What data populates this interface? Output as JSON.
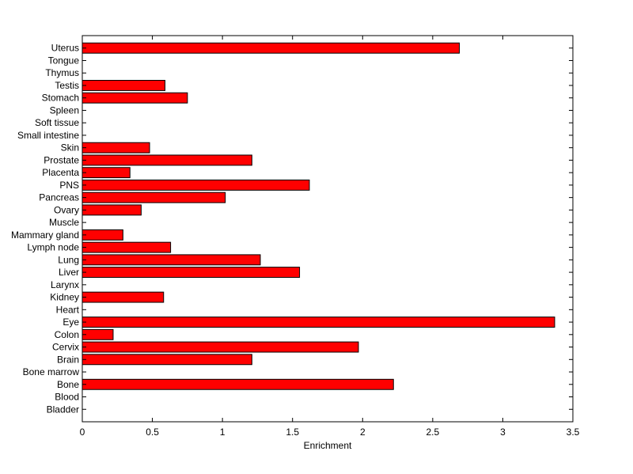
{
  "chart_data": {
    "type": "bar",
    "orientation": "horizontal",
    "categories": [
      "Bladder",
      "Blood",
      "Bone",
      "Bone marrow",
      "Brain",
      "Cervix",
      "Colon",
      "Eye",
      "Heart",
      "Kidney",
      "Larynx",
      "Liver",
      "Lung",
      "Lymph node",
      "Mammary gland",
      "Muscle",
      "Ovary",
      "Pancreas",
      "PNS",
      "Placenta",
      "Prostate",
      "Skin",
      "Small intestine",
      "Soft tissue",
      "Spleen",
      "Stomach",
      "Testis",
      "Thymus",
      "Tongue",
      "Uterus"
    ],
    "values": [
      0,
      0,
      2.22,
      0,
      1.21,
      1.97,
      0.22,
      3.37,
      0,
      0.58,
      0,
      1.55,
      1.27,
      0.63,
      0.29,
      0,
      0.42,
      1.02,
      1.62,
      0.34,
      1.21,
      0.48,
      0,
      0,
      0,
      0.75,
      0.59,
      0,
      0,
      2.69
    ],
    "xlabel": "Enrichment",
    "xlim": [
      0,
      3.5
    ],
    "xticks": [
      "0",
      "0.5",
      "1",
      "1.5",
      "2",
      "2.5",
      "3",
      "3.5"
    ],
    "grid": false,
    "bar_color": "#ff0000",
    "bar_edge_color": "#000000"
  }
}
